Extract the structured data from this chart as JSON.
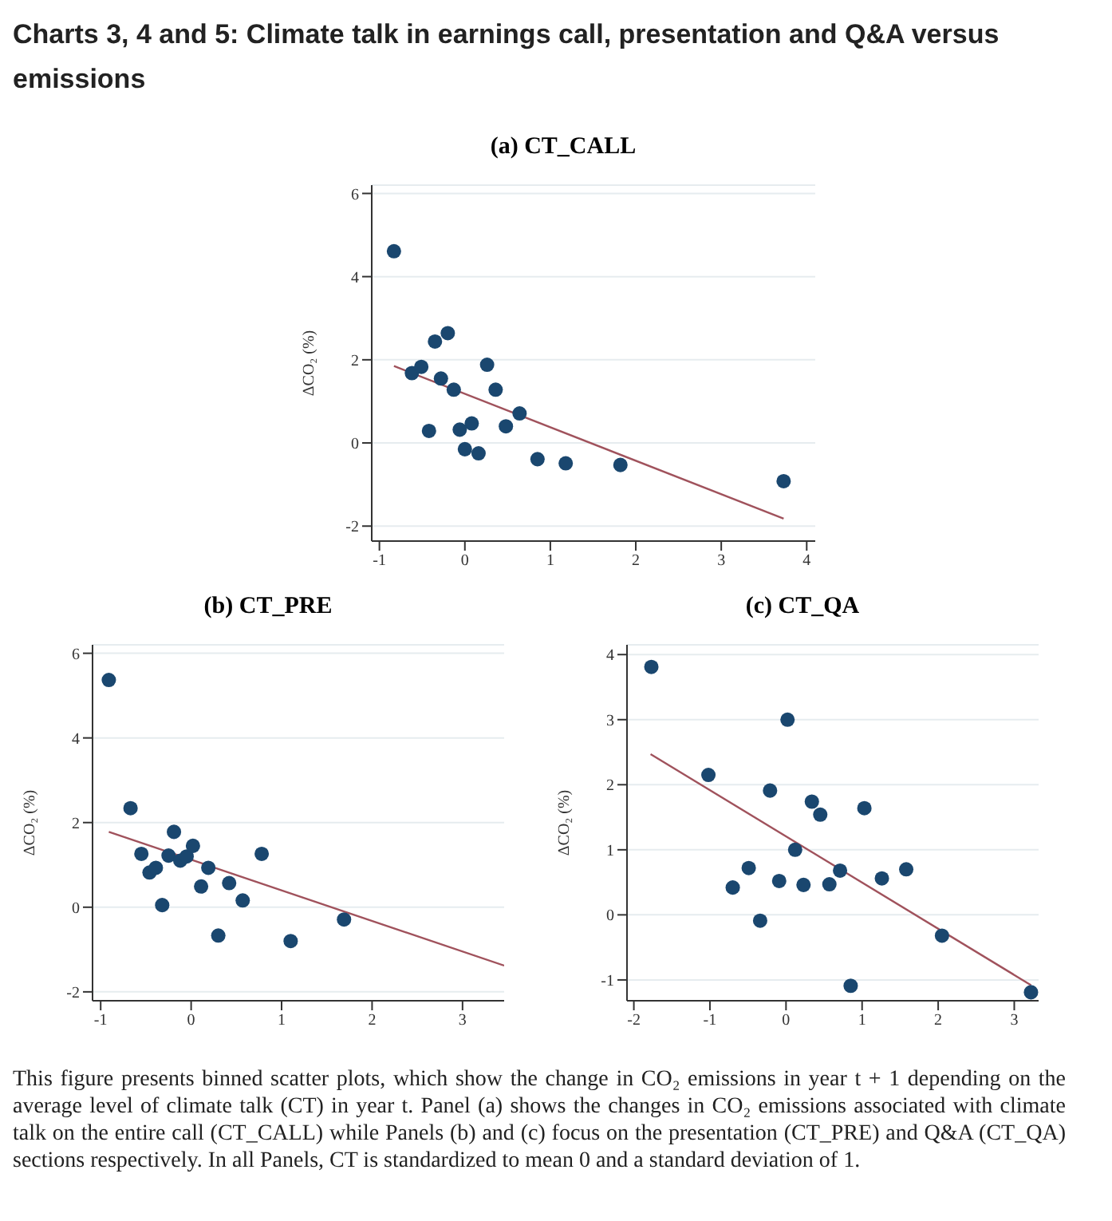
{
  "chart_data": [
    {
      "type": "other",
      "title": "Charts 3, 4 and 5: Climate talk in earnings call, presentation and Q&A versus emissions"
    },
    {
      "type": "scatter",
      "title": "(a) CT_CALL",
      "ylabel": "ΔCO₂ (%)",
      "xlim": [
        -1.09,
        4.1
      ],
      "xticks": [
        -1,
        0,
        1,
        2,
        3,
        4
      ],
      "ylim": [
        -2.36,
        6.2
      ],
      "yticks": [
        -2,
        0,
        2,
        4,
        6
      ],
      "grid": "y",
      "series": [
        {
          "type": "scatter",
          "color": "#1a476f",
          "marker": "circle",
          "x": [
            -0.83,
            -0.62,
            -0.51,
            -0.35,
            -0.2,
            -0.42,
            -0.28,
            -0.13,
            -0.06,
            0.0,
            0.08,
            0.16,
            0.26,
            0.36,
            0.48,
            0.64,
            0.85,
            1.18,
            1.82,
            3.73
          ],
          "values": [
            4.61,
            1.68,
            1.83,
            2.44,
            2.64,
            0.29,
            1.55,
            1.28,
            0.32,
            -0.15,
            0.47,
            -0.25,
            1.88,
            1.28,
            0.4,
            0.71,
            -0.39,
            -0.49,
            -0.53,
            -0.92
          ]
        },
        {
          "type": "line",
          "color": "#a0525c",
          "marker": "none",
          "x": [
            -0.83,
            3.73
          ],
          "values": [
            1.85,
            -1.82
          ]
        }
      ]
    },
    {
      "type": "scatter",
      "title": "(b) CT_PRE",
      "ylabel": "ΔCO₂ (%)",
      "xlim": [
        -1.09,
        3.46
      ],
      "xticks": [
        -1,
        0,
        1,
        2,
        3
      ],
      "ylim": [
        -2.21,
        6.2
      ],
      "yticks": [
        -2,
        0,
        2,
        4,
        6
      ],
      "grid": "y",
      "series": [
        {
          "type": "scatter",
          "color": "#1a476f",
          "marker": "circle",
          "x": [
            -0.91,
            -0.67,
            -0.55,
            -0.46,
            -0.39,
            -0.32,
            -0.25,
            -0.19,
            -0.12,
            -0.05,
            0.02,
            0.11,
            0.19,
            0.3,
            0.42,
            0.57,
            0.78,
            1.1,
            1.69
          ],
          "values": [
            5.37,
            2.34,
            1.26,
            0.82,
            0.93,
            0.05,
            1.22,
            1.78,
            1.1,
            1.2,
            1.45,
            0.49,
            0.93,
            -0.67,
            0.57,
            0.16,
            1.26,
            -0.8,
            -0.29
          ]
        },
        {
          "type": "line",
          "color": "#a0525c",
          "marker": "none",
          "x": [
            -0.91,
            3.46
          ],
          "values": [
            1.78,
            -1.38
          ]
        }
      ]
    },
    {
      "type": "scatter",
      "title": "(c) CT_QA",
      "ylabel": "ΔCO₂ (%)",
      "xlim": [
        -2.09,
        3.32
      ],
      "xticks": [
        -2,
        -1,
        0,
        1,
        2,
        3
      ],
      "ylim": [
        -1.32,
        4.15
      ],
      "yticks": [
        -1,
        0,
        1,
        2,
        3,
        4
      ],
      "grid": "y",
      "series": [
        {
          "type": "scatter",
          "color": "#1a476f",
          "marker": "circle",
          "x": [
            -1.77,
            -1.02,
            -0.7,
            -0.49,
            -0.34,
            -0.21,
            -0.09,
            0.02,
            0.12,
            0.23,
            0.34,
            0.45,
            0.57,
            0.71,
            0.85,
            1.03,
            1.26,
            1.58,
            2.05,
            3.22
          ],
          "values": [
            3.81,
            2.15,
            0.42,
            0.72,
            -0.09,
            1.91,
            0.52,
            3.0,
            1.0,
            0.46,
            1.74,
            1.54,
            0.47,
            0.68,
            -1.09,
            1.64,
            0.56,
            0.7,
            -0.32,
            -1.19
          ]
        },
        {
          "type": "line",
          "color": "#a0525c",
          "marker": "none",
          "x": [
            -1.78,
            3.22
          ],
          "values": [
            2.47,
            -1.08
          ]
        }
      ]
    },
    {
      "type": "other",
      "annotations": [
        "This figure presents binned scatter plots, which show the change in CO₂ emissions in year t + 1 depending on the average level of climate talk (CT) in year t. Panel (a) shows the changes in CO₂ emissions associated with climate talk on the entire call (CT_CALL) while Panels (b) and (c) focus on the presentation (CT_PRE) and Q&A (CT_QA) sections respectively. In all Panels, CT is standardized to mean 0 and a standard deviation of 1."
      ]
    }
  ]
}
